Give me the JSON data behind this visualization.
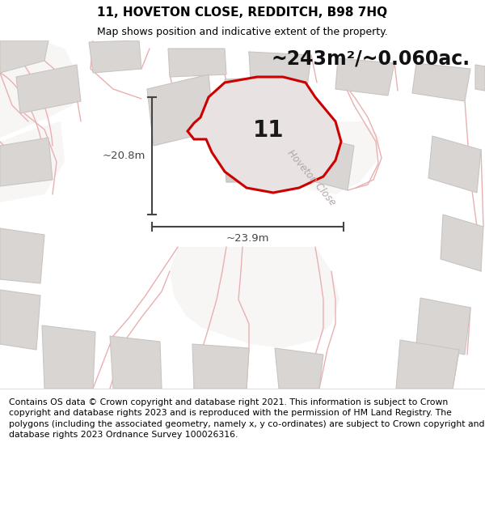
{
  "title": "11, HOVETON CLOSE, REDDITCH, B98 7HQ",
  "subtitle": "Map shows position and indicative extent of the property.",
  "area_text": "~243m²/~0.060ac.",
  "label": "11",
  "dim_width": "~23.9m",
  "dim_height": "~20.8m",
  "street_label": "Hoveton Close",
  "footer_text": "Contains OS data © Crown copyright and database right 2021. This information is subject to Crown copyright and database rights 2023 and is reproduced with the permission of HM Land Registry. The polygons (including the associated geometry, namely x, y co-ordinates) are subject to Crown copyright and database rights 2023 Ordnance Survey 100026316.",
  "map_bg": "#f0eeed",
  "building_fill": "#d8d5d3",
  "building_edge": "#c8c5c3",
  "road_fill": "#ffffff",
  "road_outline": "#e8b0b0",
  "plot_fill": "#e8e2e2",
  "plot_edge": "#cc0000",
  "plot_edge_width": 2.2,
  "dim_color": "#444444",
  "street_text_color": "#b0a8a8",
  "title_fontsize": 11,
  "subtitle_fontsize": 9,
  "area_fontsize": 17,
  "label_fontsize": 20,
  "footer_fontsize": 7.8
}
